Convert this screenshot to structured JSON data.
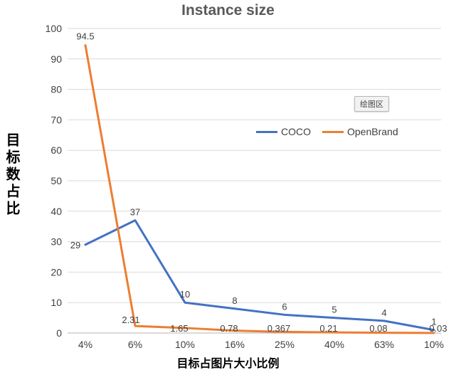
{
  "chart": {
    "title": "Instance size",
    "y_axis_label": "目标数占比",
    "x_axis_label": "目标占图片大小比例",
    "plot_area_badge": "绘图区",
    "legend": [
      {
        "label": "COCO",
        "color": "#4472C4"
      },
      {
        "label": "OpenBrand",
        "color": "#ED7D31"
      }
    ]
  },
  "chart_data": {
    "type": "line",
    "title": "Instance size",
    "xlabel": "目标占图片大小比例",
    "ylabel": "目标数占比",
    "categories": [
      "4%",
      "6%",
      "10%",
      "16%",
      "25%",
      "40%",
      "63%",
      "10%"
    ],
    "series": [
      {
        "name": "COCO",
        "color": "#4472C4",
        "values": [
          29,
          37,
          10,
          8,
          6,
          5,
          4,
          1
        ],
        "labels": [
          "29",
          "37",
          "10",
          "8",
          "6",
          "5",
          "4",
          "1"
        ]
      },
      {
        "name": "OpenBrand",
        "color": "#ED7D31",
        "values": [
          94.5,
          2.31,
          1.65,
          0.78,
          0.367,
          0.21,
          0.08,
          0.03
        ],
        "labels": [
          "94.5",
          "2.31",
          "1.65",
          "0.78",
          "0.367",
          "0.21",
          "0.08",
          "0.03"
        ]
      }
    ],
    "ylim": [
      0,
      100
    ],
    "y_ticks": [
      0,
      10,
      20,
      30,
      40,
      50,
      60,
      70,
      80,
      90,
      100
    ],
    "grid": true,
    "legend_position": "upper-center-inside"
  }
}
